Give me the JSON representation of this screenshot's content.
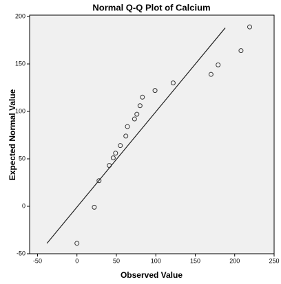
{
  "chart_data": {
    "type": "scatter",
    "title": "Normal Q-Q Plot of Calcium",
    "xlabel": "Observed Value",
    "ylabel": "Expected Normal Value",
    "x": [
      0,
      22,
      28,
      41,
      46,
      49,
      55,
      62,
      64,
      73,
      76,
      80,
      83,
      99,
      122,
      170,
      179,
      208,
      219
    ],
    "values": [
      -39,
      -1,
      27,
      43,
      51,
      56,
      64,
      74,
      84,
      92,
      97,
      106,
      115,
      122,
      130,
      139,
      149,
      164,
      189
    ],
    "reference_line": {
      "x": [
        -38,
        188
      ],
      "y": [
        -39,
        188
      ]
    },
    "color": "#333333",
    "xlim": [
      -60,
      250
    ],
    "ylim": [
      -50,
      200
    ],
    "xticks": [
      -50,
      0,
      50,
      100,
      150,
      200,
      250
    ],
    "yticks": [
      -50,
      0,
      50,
      100,
      150,
      200
    ]
  }
}
